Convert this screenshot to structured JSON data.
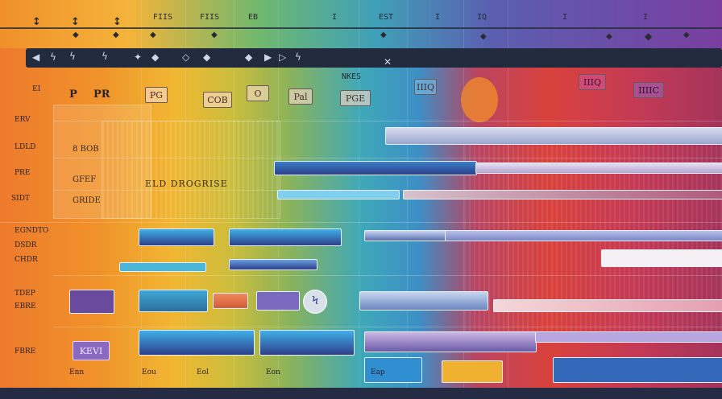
{
  "top_labels": [
    "FIIS",
    "FIIS",
    "EB",
    "I",
    "I",
    "EST",
    "I",
    "IQ",
    "I",
    "I"
  ],
  "toolbar_label": "NKES",
  "header": {
    "labels": [
      "P",
      "PR",
      "PG",
      "COB",
      "O",
      "Pal",
      "PGE",
      "IIIQ",
      "IIIIC"
    ]
  },
  "side_labels": [
    "EI",
    "ERV",
    "LDLD",
    "PRE",
    "SIDT",
    "EGNDTO",
    "DSDR",
    "CHDR",
    "TDEP",
    "EBRE",
    "FBRE"
  ],
  "mid_labels": {
    "row1": "8 BOB",
    "row2": "GFEF",
    "row3": "GRIDE",
    "grid_label": "ELD DROGRISE"
  },
  "chips": {
    "menu": "KEVI"
  },
  "footer_labels": [
    "Enn",
    "Eou",
    "Eol",
    "Eon",
    "Eap"
  ],
  "colors": {
    "bar_blue": "#2f8fd0",
    "bar_navy": "#2d3f8a",
    "bar_purple": "#6a4a9c",
    "bar_light": "#9fd6ef",
    "red_band": "#d33d3b"
  }
}
